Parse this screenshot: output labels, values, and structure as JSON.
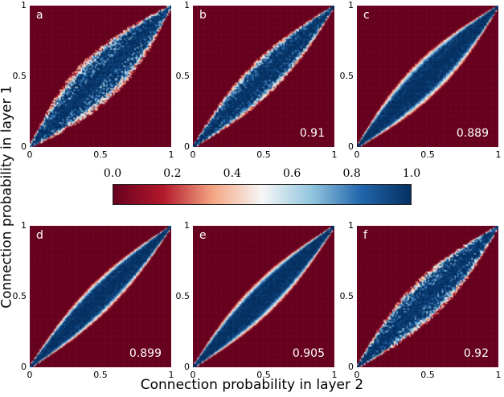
{
  "chart_data": {
    "type": "heatmap",
    "xlabel": "Connection probability in layer 2",
    "ylabel": "Connection probability in layer 1",
    "xlim": [
      0,
      1
    ],
    "ylim": [
      0,
      1
    ],
    "x_ticks": [
      "0",
      "0.5",
      "1"
    ],
    "y_ticks": [
      "0",
      "0.5",
      "1"
    ],
    "colorbar": {
      "range": [
        0.0,
        1.0
      ],
      "tick_labels": [
        "0.0",
        "0.2",
        "0.4",
        "0.6",
        "0.8",
        "1.0"
      ],
      "colors": [
        "#67001f",
        "#b2182b",
        "#f4a582",
        "#f7f7f7",
        "#92c5de",
        "#2166ac",
        "#053061"
      ]
    },
    "panels": [
      {
        "label": "a",
        "value": "",
        "band_width": 0.22,
        "noise": 0.55
      },
      {
        "label": "b",
        "value": "0.91",
        "band_width": 0.16,
        "noise": 0.4
      },
      {
        "label": "c",
        "value": "0.889",
        "band_width": 0.17,
        "noise": 0.15
      },
      {
        "label": "d",
        "value": "0.899",
        "band_width": 0.14,
        "noise": 0.15
      },
      {
        "label": "e",
        "value": "0.905",
        "band_width": 0.15,
        "noise": 0.12
      },
      {
        "label": "f",
        "value": "0.92",
        "band_width": 0.18,
        "noise": 0.5
      }
    ]
  }
}
